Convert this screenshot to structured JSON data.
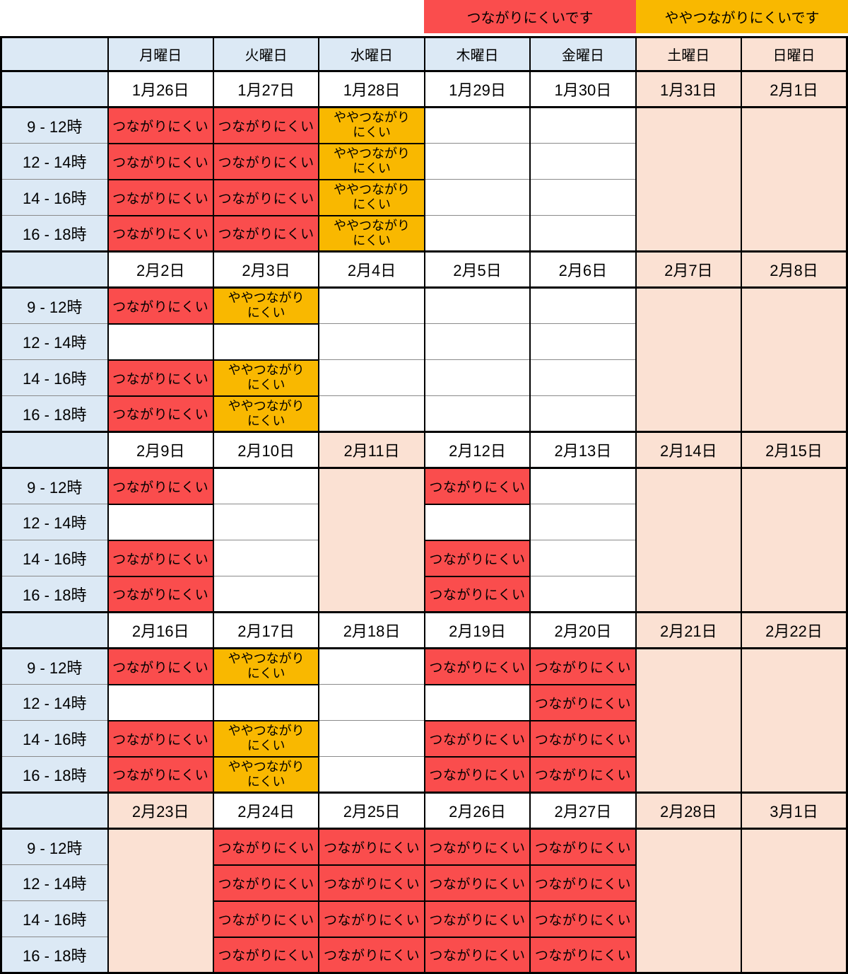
{
  "legend": {
    "hard": "つながりにくいです",
    "somewhat": "ややつながりにくいです"
  },
  "colors": {
    "hard_red": "#fa4d4d",
    "somewhat_orange": "#f9b800",
    "weekday_header_blue": "#dce9f5",
    "weekend_peach": "#fbe1d3",
    "grid_line_gray": "#8a8a8a",
    "border_black": "#000000"
  },
  "table": {
    "day_headers": [
      {
        "label": "月曜日",
        "weekend": false
      },
      {
        "label": "火曜日",
        "weekend": false
      },
      {
        "label": "水曜日",
        "weekend": false
      },
      {
        "label": "木曜日",
        "weekend": false
      },
      {
        "label": "金曜日",
        "weekend": false
      },
      {
        "label": "土曜日",
        "weekend": true
      },
      {
        "label": "日曜日",
        "weekend": true
      }
    ],
    "time_slots": [
      "9 - 12時",
      "12 - 14時",
      "14 - 16時",
      "16 - 18時"
    ],
    "cell_labels": {
      "red": "つながりにくい",
      "orange": "ややつながり\nにくい"
    },
    "weeks": [
      {
        "dates": [
          "1月26日",
          "1月27日",
          "1月28日",
          "1月29日",
          "1月30日",
          "1月31日",
          "2月1日"
        ],
        "merged_cols": [
          5,
          6
        ],
        "cells": [
          [
            "red",
            "red",
            "red",
            "red"
          ],
          [
            "red",
            "red",
            "red",
            "red"
          ],
          [
            "orange",
            "orange",
            "orange",
            "orange"
          ],
          [
            "",
            "",
            "",
            ""
          ],
          [
            "",
            "",
            "",
            ""
          ],
          null,
          null
        ]
      },
      {
        "dates": [
          "2月2日",
          "2月3日",
          "2月4日",
          "2月5日",
          "2月6日",
          "2月7日",
          "2月8日"
        ],
        "merged_cols": [
          5,
          6
        ],
        "cells": [
          [
            "red",
            "",
            "red",
            "red"
          ],
          [
            "orange",
            "",
            "orange",
            "orange"
          ],
          [
            "",
            "",
            "",
            ""
          ],
          [
            "",
            "",
            "",
            ""
          ],
          [
            "",
            "",
            "",
            ""
          ],
          null,
          null
        ]
      },
      {
        "dates": [
          "2月9日",
          "2月10日",
          "2月11日",
          "2月12日",
          "2月13日",
          "2月14日",
          "2月15日"
        ],
        "merged_cols": [
          2,
          5,
          6
        ],
        "cells": [
          [
            "red",
            "",
            "red",
            "red"
          ],
          [
            "",
            "",
            "",
            ""
          ],
          null,
          [
            "red",
            "",
            "red",
            "red"
          ],
          [
            "",
            "",
            "",
            ""
          ],
          null,
          null
        ]
      },
      {
        "dates": [
          "2月16日",
          "2月17日",
          "2月18日",
          "2月19日",
          "2月20日",
          "2月21日",
          "2月22日"
        ],
        "merged_cols": [
          5,
          6
        ],
        "cells": [
          [
            "red",
            "",
            "red",
            "red"
          ],
          [
            "orange",
            "",
            "orange",
            "orange"
          ],
          [
            "",
            "",
            "",
            ""
          ],
          [
            "red",
            "",
            "red",
            "red"
          ],
          [
            "red",
            "red",
            "red",
            "red"
          ],
          null,
          null
        ]
      },
      {
        "dates": [
          "2月23日",
          "2月24日",
          "2月25日",
          "2月26日",
          "2月27日",
          "2月28日",
          "3月1日"
        ],
        "merged_cols": [
          0,
          5,
          6
        ],
        "cells": [
          null,
          [
            "red",
            "red",
            "red",
            "red"
          ],
          [
            "red",
            "red",
            "red",
            "red"
          ],
          [
            "red",
            "red",
            "red",
            "red"
          ],
          [
            "red",
            "red",
            "red",
            "red"
          ],
          null,
          null
        ]
      }
    ]
  }
}
